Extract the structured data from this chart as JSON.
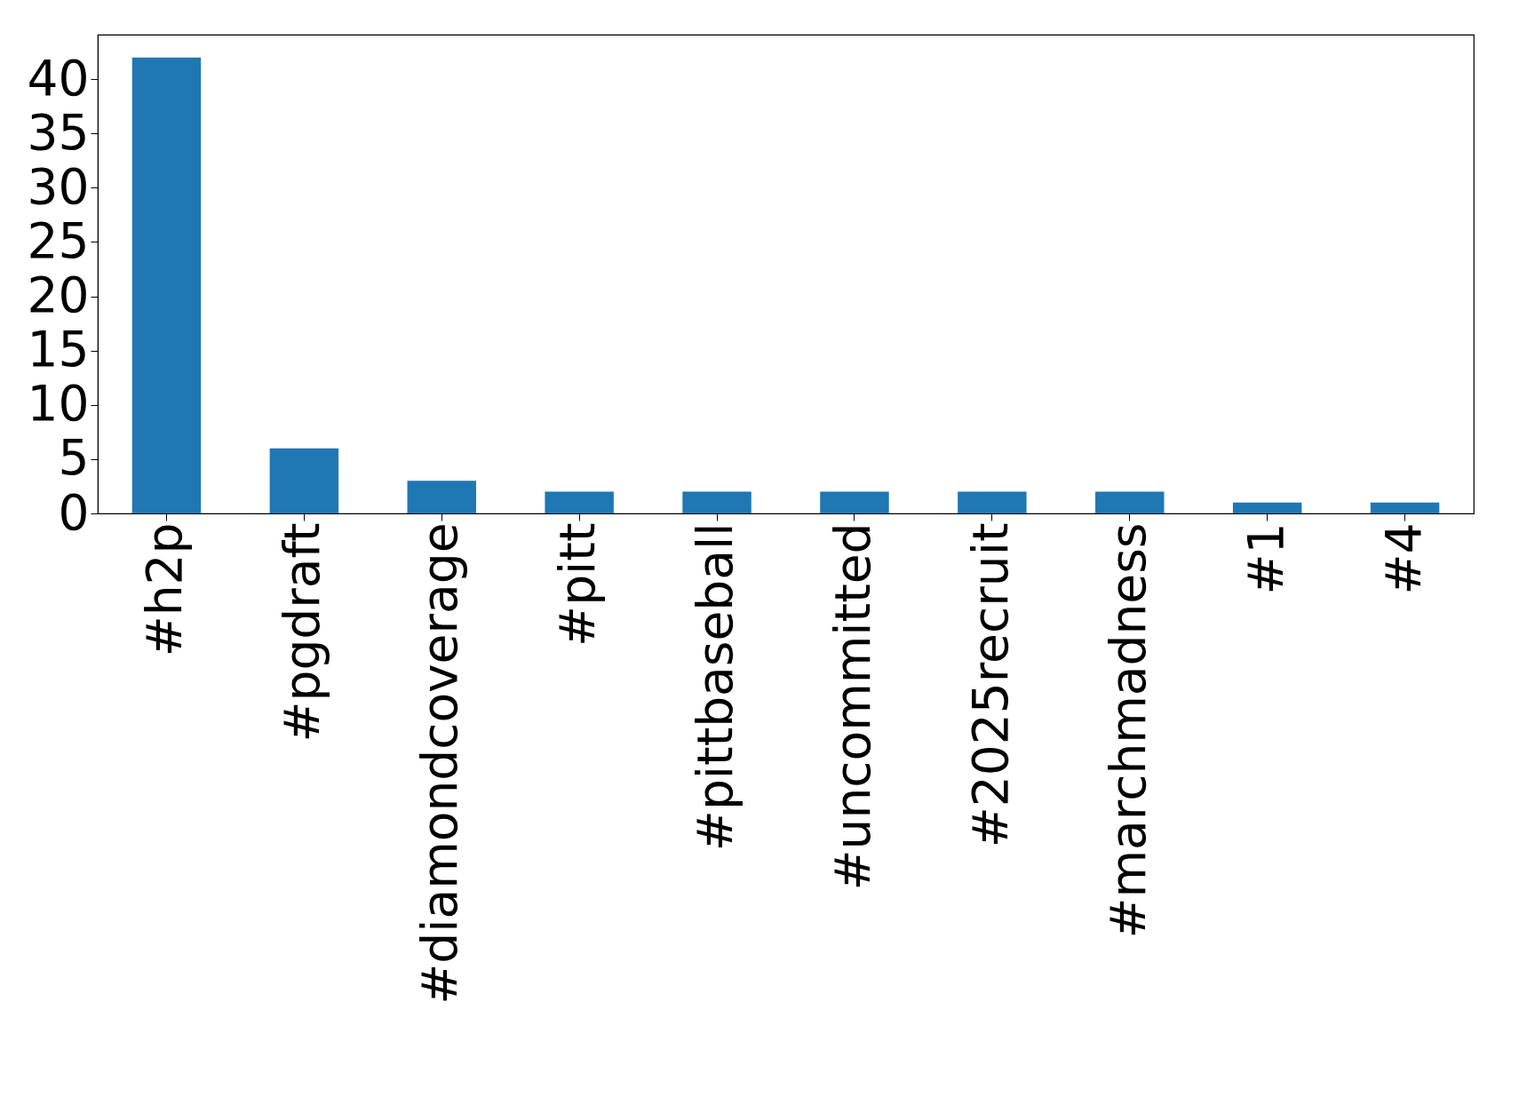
{
  "chart_data": {
    "type": "bar",
    "categories": [
      "#h2p",
      "#pgdraft",
      "#diamondcoverage",
      "#pitt",
      "#pittbaseball",
      "#uncommitted",
      "#2025recruit",
      "#marchmadness",
      "#1",
      "#4"
    ],
    "values": [
      42,
      6,
      3,
      2,
      2,
      2,
      2,
      2,
      1,
      1
    ],
    "color": "#1f77b4",
    "ylim": [
      0,
      44.1
    ],
    "yticks": [
      0,
      5,
      10,
      15,
      20,
      25,
      30,
      35,
      40
    ],
    "grid": false
  }
}
